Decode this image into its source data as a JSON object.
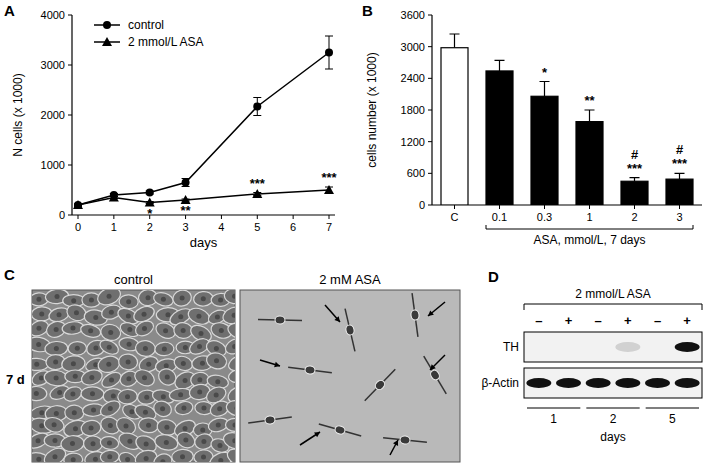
{
  "chart_data": [
    {
      "type": "line",
      "title": "A",
      "xlabel": "days",
      "ylabel": "N cells (x 1000)",
      "x": [
        0,
        1,
        2,
        3,
        5,
        7
      ],
      "series": [
        {
          "name": "control",
          "color": "#000000",
          "marker": "circle",
          "line_style": "solid",
          "values": [
            200,
            400,
            450,
            650,
            2170,
            3250
          ],
          "errors": [
            20,
            30,
            30,
            80,
            180,
            330
          ]
        },
        {
          "name": "2 mmol/L ASA",
          "color": "#000000",
          "marker": "triangle",
          "line_style": "solid",
          "values": [
            200,
            350,
            250,
            300,
            420,
            500
          ],
          "errors": [
            20,
            20,
            20,
            20,
            30,
            60
          ]
        }
      ],
      "xlim": [
        0,
        7
      ],
      "xticks": [
        0,
        1,
        2,
        3,
        4,
        5,
        6,
        7
      ],
      "ylim": [
        0,
        4000
      ],
      "yticks": [
        0,
        1000,
        2000,
        3000,
        4000
      ],
      "legend": "top-left",
      "grid": false,
      "annotations": [
        {
          "text": "*",
          "x": 2
        },
        {
          "text": "**",
          "x": 3
        },
        {
          "text": "***",
          "x": 5
        },
        {
          "text": "***",
          "x": 7
        }
      ]
    },
    {
      "type": "bar",
      "title": "B",
      "ylabel": "cells number (x 1000)",
      "xlabel": "ASA, mmol/L, 7 days",
      "categories": [
        "C",
        "0.1",
        "0.3",
        "1",
        "2",
        "3"
      ],
      "values": [
        2980,
        2540,
        2060,
        1580,
        450,
        490
      ],
      "errors": [
        260,
        200,
        280,
        220,
        70,
        110
      ],
      "colors": [
        "#ffffff",
        "#000000",
        "#000000",
        "#000000",
        "#000000",
        "#000000"
      ],
      "ylim": [
        0,
        3600
      ],
      "yticks": [
        0,
        600,
        1200,
        1800,
        2400,
        3000,
        3600
      ],
      "grid": false,
      "annotations": [
        {
          "text": "*",
          "category": 2
        },
        {
          "text": "**",
          "category": 3
        },
        {
          "text": "***",
          "category": 4
        },
        {
          "text": "#",
          "category": 4
        },
        {
          "text": "***",
          "category": 5
        },
        {
          "text": "#",
          "category": 5
        }
      ]
    }
  ],
  "images": {
    "title": "C",
    "row_label": "7 d",
    "labels": [
      "control",
      "2 mM ASA"
    ]
  },
  "blot": {
    "title": "D",
    "header": "2 mmol/L ASA",
    "lanes": [
      "–",
      "+",
      "–",
      "+",
      "–",
      "+"
    ],
    "rows": [
      {
        "label": "TH",
        "values": [
          0,
          0,
          0,
          0.15,
          0,
          1
        ]
      },
      {
        "label": "β-Actin",
        "values": [
          1,
          1,
          1,
          1,
          1,
          1
        ]
      }
    ],
    "days": [
      "1",
      "2",
      "5"
    ],
    "xlabel": "days"
  }
}
